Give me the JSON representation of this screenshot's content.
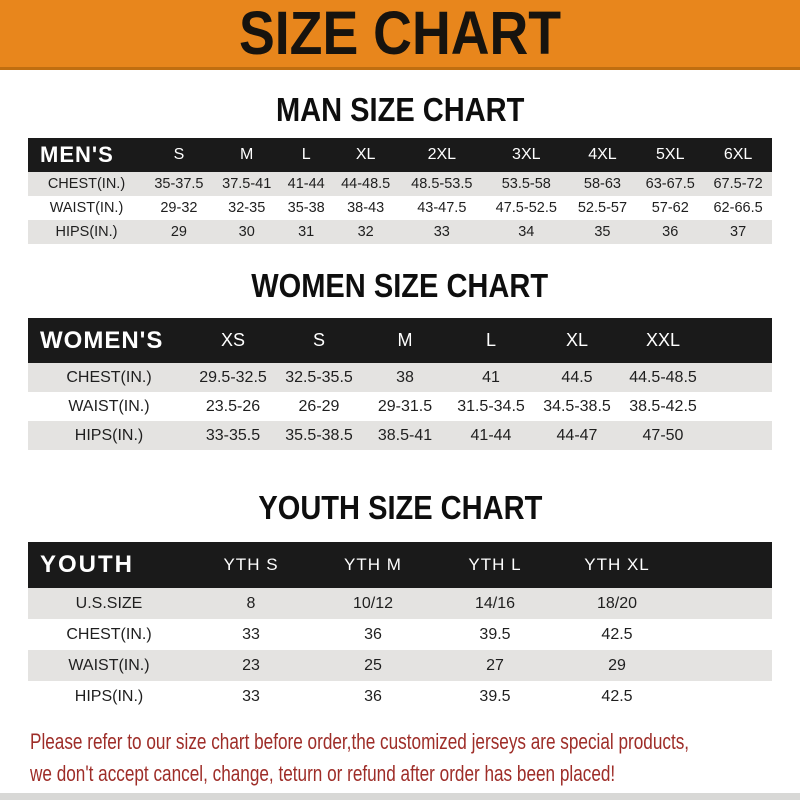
{
  "banner": {
    "title": "SIZE CHART"
  },
  "colors": {
    "banner_orange": "#E8861C",
    "table_header_black": "#1A1A1A",
    "row_gray": "#E4E3E1",
    "footer_red": "#9E2D28"
  },
  "sections": {
    "men": {
      "heading": "MAN SIZE CHART",
      "table": {
        "label": "MEN'S",
        "columns": [
          "S",
          "M",
          "L",
          "XL",
          "2XL",
          "3XL",
          "4XL",
          "5XL",
          "6XL"
        ],
        "rows": [
          {
            "label": "CHEST(IN.)",
            "values": [
              "35-37.5",
              "37.5-41",
              "41-44",
              "44-48.5",
              "48.5-53.5",
              "53.5-58",
              "58-63",
              "63-67.5",
              "67.5-72"
            ]
          },
          {
            "label": "WAIST(IN.)",
            "values": [
              "29-32",
              "32-35",
              "35-38",
              "38-43",
              "43-47.5",
              "47.5-52.5",
              "52.5-57",
              "57-62",
              "62-66.5"
            ]
          },
          {
            "label": "HIPS(IN.)",
            "values": [
              "29",
              "30",
              "31",
              "32",
              "33",
              "34",
              "35",
              "36",
              "37"
            ]
          }
        ]
      }
    },
    "women": {
      "heading": "WOMEN SIZE CHART",
      "table": {
        "label": "WOMEN'S",
        "columns": [
          "XS",
          "S",
          "M",
          "L",
          "XL",
          "XXL"
        ],
        "rows": [
          {
            "label": "CHEST(IN.)",
            "values": [
              "29.5-32.5",
              "32.5-35.5",
              "38",
              "41",
              "44.5",
              "44.5-48.5"
            ]
          },
          {
            "label": "WAIST(IN.)",
            "values": [
              "23.5-26",
              "26-29",
              "29-31.5",
              "31.5-34.5",
              "34.5-38.5",
              "38.5-42.5"
            ]
          },
          {
            "label": "HIPS(IN.)",
            "values": [
              "33-35.5",
              "35.5-38.5",
              "38.5-41",
              "41-44",
              "44-47",
              "47-50"
            ]
          }
        ]
      }
    },
    "youth": {
      "heading": "YOUTH SIZE CHART",
      "table": {
        "label": "YOUTH",
        "columns": [
          "YTH S",
          "YTH M",
          "YTH L",
          "YTH XL"
        ],
        "rows": [
          {
            "label": "U.S.SIZE",
            "values": [
              "8",
              "10/12",
              "14/16",
              "18/20"
            ]
          },
          {
            "label": "CHEST(IN.)",
            "values": [
              "33",
              "36",
              "39.5",
              "42.5"
            ]
          },
          {
            "label": "WAIST(IN.)",
            "values": [
              "23",
              "25",
              "27",
              "29"
            ]
          },
          {
            "label": "HIPS(IN.)",
            "values": [
              "33",
              "36",
              "39.5",
              "42.5"
            ]
          }
        ]
      }
    }
  },
  "footer": {
    "line1": "Please refer to our size chart before order,the customized jerseys are special products,",
    "line2": "we don't accept cancel, change, teturn or refund after order has been placed!"
  }
}
